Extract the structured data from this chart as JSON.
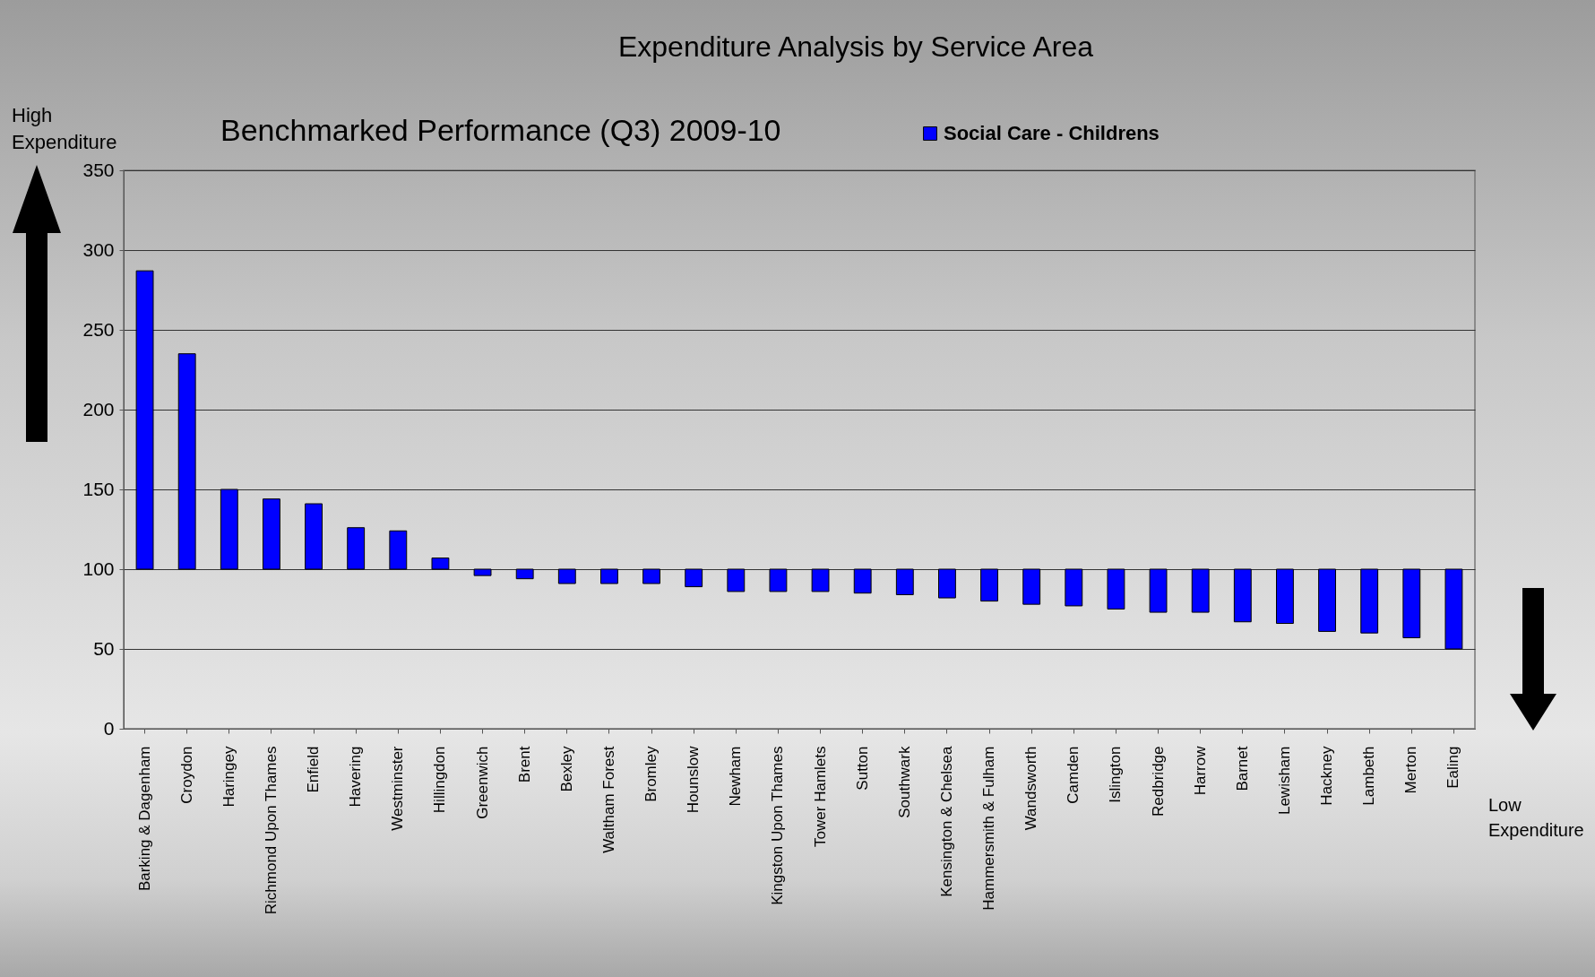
{
  "chart_data": {
    "type": "bar",
    "title": "Expenditure Analysis by Service Area",
    "subtitle": "Benchmarked Performance (Q3) 2009-10",
    "annotations": [
      "High Expenditure",
      "Low Expenditure"
    ],
    "categories": [
      "Barking & Dagenham",
      "Croydon",
      "Haringey",
      "Richmond Upon Thames",
      "Enfield",
      "Havering",
      "Westminster",
      "Hillingdon",
      "Greenwich",
      "Brent",
      "Bexley",
      "Waltham Forest",
      "Bromley",
      "Hounslow",
      "Newham",
      "Kingston Upon Thames",
      "Tower Hamlets",
      "Sutton",
      "Southwark",
      "Kensington & Chelsea",
      "Hammersmith & Fulham",
      "Wandsworth",
      "Camden",
      "Islington",
      "Redbridge",
      "Harrow",
      "Barnet",
      "Lewisham",
      "Hackney",
      "Lambeth",
      "Merton",
      "Ealing"
    ],
    "series": [
      {
        "name": "Social Care - Childrens",
        "color": "#0000ff",
        "base": [
          100,
          100,
          100,
          100,
          100,
          100,
          100,
          100,
          100,
          100,
          100,
          100,
          100,
          100,
          100,
          100,
          100,
          100,
          100,
          100,
          100,
          100,
          100,
          100,
          100,
          100,
          100,
          100,
          100,
          100,
          100,
          100
        ],
        "values": [
          187,
          135,
          50,
          44,
          41,
          26,
          24,
          7,
          -4,
          -6,
          -9,
          -9,
          -9,
          -11,
          -14,
          -14,
          -14,
          -15,
          -16,
          -18,
          -20,
          -22,
          -23,
          -25,
          -27,
          -27,
          -33,
          -34,
          -39,
          -40,
          -43,
          -50
        ]
      }
    ],
    "ylim": [
      0,
      350
    ],
    "yticks": [
      0,
      50,
      100,
      150,
      200,
      250,
      300,
      350
    ],
    "grid": "y",
    "legend": "top"
  }
}
